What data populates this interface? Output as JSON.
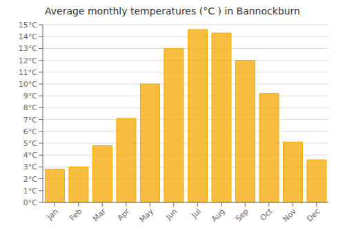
{
  "chart_data": {
    "type": "bar",
    "title": "Average monthly temperatures (°C ) in Bannockburn",
    "categories": [
      "Jan",
      "Feb",
      "Mar",
      "Apr",
      "May",
      "Jun",
      "Jul",
      "Aug",
      "Sep",
      "Oct",
      "Nov",
      "Dec"
    ],
    "values": [
      2.8,
      3.0,
      4.8,
      7.1,
      10.0,
      13.0,
      14.6,
      14.3,
      12.0,
      9.2,
      5.1,
      3.6
    ],
    "color": "#F5A800",
    "ylim": [
      0,
      15
    ],
    "yticks": [
      {
        "value": 0,
        "label": "0°C"
      },
      {
        "value": 1,
        "label": "1°C"
      },
      {
        "value": 2,
        "label": "2°C"
      },
      {
        "value": 3,
        "label": "3°C"
      },
      {
        "value": 4,
        "label": "4°C"
      },
      {
        "value": 5,
        "label": "5°C"
      },
      {
        "value": 6,
        "label": "6°C"
      },
      {
        "value": 7,
        "label": "7°C"
      },
      {
        "value": 8,
        "label": "8°C"
      },
      {
        "value": 9,
        "label": "9°C"
      },
      {
        "value": 10,
        "label": "10°C"
      },
      {
        "value": 11,
        "label": "11°C"
      },
      {
        "value": 12,
        "label": "12°C"
      },
      {
        "value": 13,
        "label": "13°C"
      },
      {
        "value": 14,
        "label": "14°C"
      },
      {
        "value": 15,
        "label": "15°C"
      }
    ],
    "grid": true
  }
}
